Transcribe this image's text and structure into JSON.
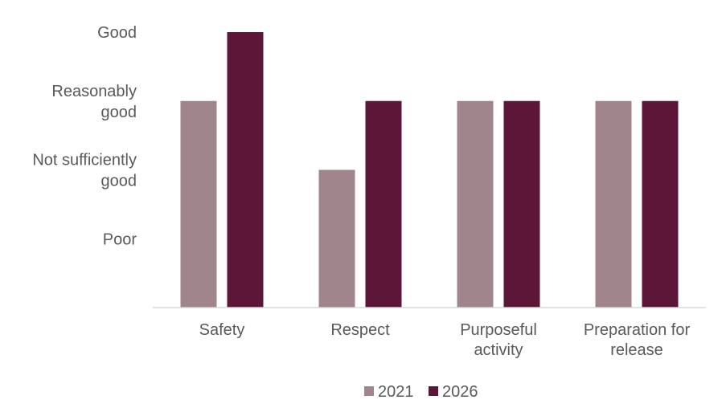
{
  "chart_data": {
    "type": "bar",
    "title": "",
    "xlabel": "",
    "ylabel": "",
    "categories": [
      [
        "Safety"
      ],
      [
        "Respect"
      ],
      [
        "Purposeful",
        "activity"
      ],
      [
        "Preparation for",
        "release"
      ]
    ],
    "y_levels": [
      [
        "Poor"
      ],
      [
        "Not sufficiently",
        "good"
      ],
      [
        "Reasonably",
        "good"
      ],
      [
        "Good"
      ]
    ],
    "ylim": [
      0,
      4
    ],
    "series": [
      {
        "name": "2021",
        "color": "#a0858d",
        "values": [
          3,
          2,
          3,
          3
        ]
      },
      {
        "name": "2026",
        "color": "#5c1638",
        "values": [
          4,
          3,
          3,
          3
        ]
      }
    ],
    "grid": false,
    "legend_position": "bottom",
    "axis_color": "#d9d9d9"
  }
}
